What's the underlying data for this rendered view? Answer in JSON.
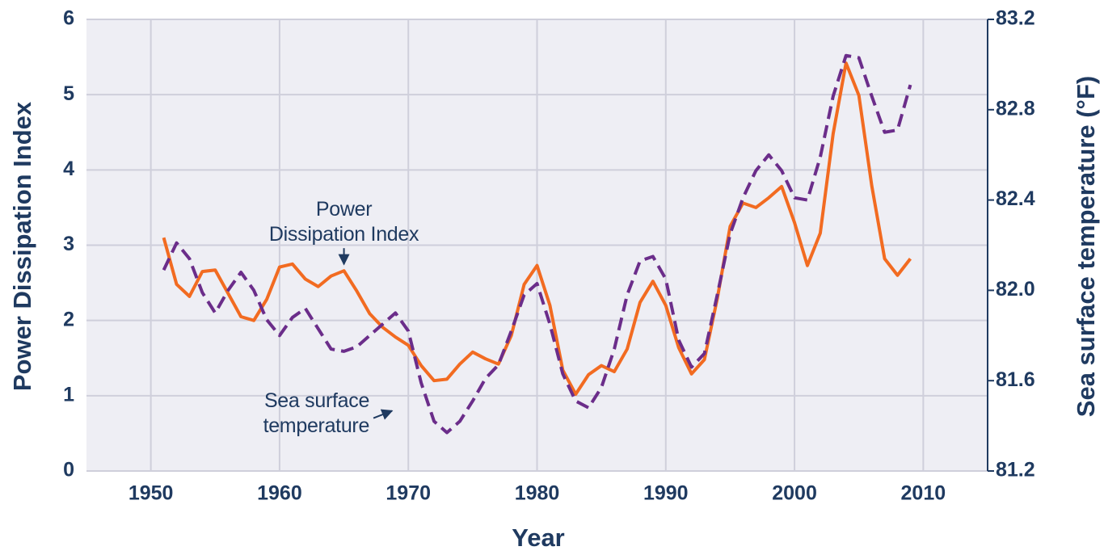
{
  "chart_data": {
    "type": "line",
    "x_label": "Year",
    "y_label": "Power Dissipation Index",
    "y2_label": "Sea surface temperature (°F)",
    "x": [
      1951,
      1952,
      1953,
      1954,
      1955,
      1956,
      1957,
      1958,
      1959,
      1960,
      1961,
      1962,
      1963,
      1964,
      1965,
      1966,
      1967,
      1968,
      1969,
      1970,
      1971,
      1972,
      1973,
      1974,
      1975,
      1976,
      1977,
      1978,
      1979,
      1980,
      1981,
      1982,
      1983,
      1984,
      1985,
      1986,
      1987,
      1988,
      1989,
      1990,
      1991,
      1992,
      1993,
      1994,
      1995,
      1996,
      1997,
      1998,
      1999,
      2000,
      2001,
      2002,
      2003,
      2004,
      2005,
      2006,
      2007,
      2008,
      2009
    ],
    "series": [
      {
        "name": "Power Dissipation Index",
        "color": "#f26b21",
        "axis": "y",
        "dashed": false,
        "values": [
          3.1,
          2.48,
          2.32,
          2.65,
          2.67,
          2.36,
          2.05,
          2.0,
          2.28,
          2.71,
          2.75,
          2.55,
          2.45,
          2.59,
          2.66,
          2.39,
          2.09,
          1.91,
          1.78,
          1.67,
          1.4,
          1.2,
          1.22,
          1.42,
          1.58,
          1.49,
          1.42,
          1.8,
          2.48,
          2.73,
          2.2,
          1.34,
          1.02,
          1.28,
          1.4,
          1.32,
          1.62,
          2.24,
          2.52,
          2.2,
          1.64,
          1.29,
          1.48,
          2.29,
          3.25,
          3.56,
          3.5,
          3.63,
          3.78,
          3.3,
          2.73,
          3.16,
          4.48,
          5.42,
          4.99,
          3.79,
          2.82,
          2.6,
          2.82
        ]
      },
      {
        "name": "Sea surface temperature",
        "color": "#6b2d8a",
        "axis": "y2",
        "dashed": true,
        "values": [
          82.09,
          82.21,
          82.14,
          81.99,
          81.9,
          82.0,
          82.08,
          82.0,
          81.87,
          81.8,
          81.88,
          81.92,
          81.83,
          81.74,
          81.73,
          81.75,
          81.8,
          81.85,
          81.9,
          81.82,
          81.59,
          81.42,
          81.37,
          81.42,
          81.51,
          81.61,
          81.67,
          81.82,
          81.98,
          82.03,
          81.85,
          81.63,
          81.51,
          81.48,
          81.57,
          81.74,
          81.98,
          82.13,
          82.15,
          82.05,
          81.78,
          81.66,
          81.72,
          81.98,
          82.25,
          82.41,
          82.53,
          82.6,
          82.53,
          82.41,
          82.4,
          82.59,
          82.86,
          83.04,
          83.03,
          82.86,
          82.7,
          82.71,
          82.91
        ]
      }
    ],
    "annotations": [
      {
        "lines": [
          "Power",
          "Dissipation Index"
        ],
        "series": 0,
        "x": 1965
      },
      {
        "lines": [
          "Sea surface",
          "temperature"
        ],
        "series": 1,
        "x": 1972
      }
    ],
    "xlim": [
      1945,
      2015
    ],
    "xticks": [
      1950,
      1960,
      1970,
      1980,
      1990,
      2000,
      2010
    ],
    "ylim": [
      0,
      6
    ],
    "yticks": [
      0,
      1,
      2,
      3,
      4,
      5,
      6
    ],
    "y2lim": [
      81.2,
      83.2
    ],
    "y2ticks": [
      {
        "value": 81.2,
        "label": "81.2"
      },
      {
        "value": 81.6,
        "label": "81.6"
      },
      {
        "value": 82.0,
        "label": "82.0"
      },
      {
        "value": 82.4,
        "label": "82.4"
      },
      {
        "value": 82.8,
        "label": "82.8"
      },
      {
        "value": 83.2,
        "label": "83.2"
      }
    ],
    "grid": true
  }
}
